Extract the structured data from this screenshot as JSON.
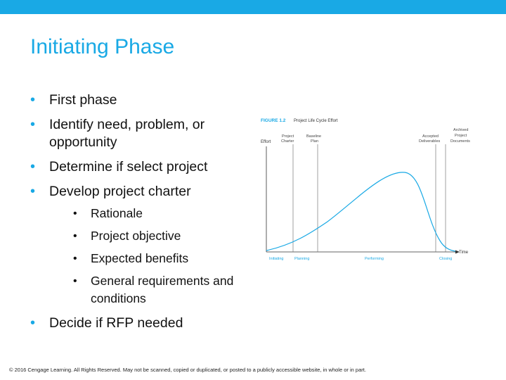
{
  "slide": {
    "title": "Initiating Phase",
    "bullets": [
      "First phase",
      "Identify need, problem, or opportunity",
      "Determine if select project",
      "Develop project charter"
    ],
    "sub_bullets": [
      "Rationale",
      "Project objective",
      "Expected benefits",
      "General requirements and conditions"
    ],
    "last_bullet": "Decide if RFP needed",
    "accent_color": "#19a9e5"
  },
  "figure": {
    "label": "FIGURE 1.2",
    "caption": "Project Life Cycle Effort",
    "y_axis_label": "Effort",
    "x_axis_label": "Time",
    "milestones": {
      "charter_1": "Project",
      "charter_2": "Charter",
      "baseline_1": "Baseline",
      "baseline_2": "Plan",
      "accepted_1": "Accepted",
      "accepted_2": "Deliverables",
      "archived_1": "Archived",
      "archived_2": "Project",
      "archived_3": "Documents"
    },
    "phases": {
      "initiating": "Initiating",
      "planning": "Planning",
      "performing": "Performing",
      "closing": "Closing"
    }
  },
  "footer": "© 2016 Cengage Learning. All Rights Reserved. May not be scanned, copied or duplicated, or posted to a publicly accessible website, in whole or in part."
}
